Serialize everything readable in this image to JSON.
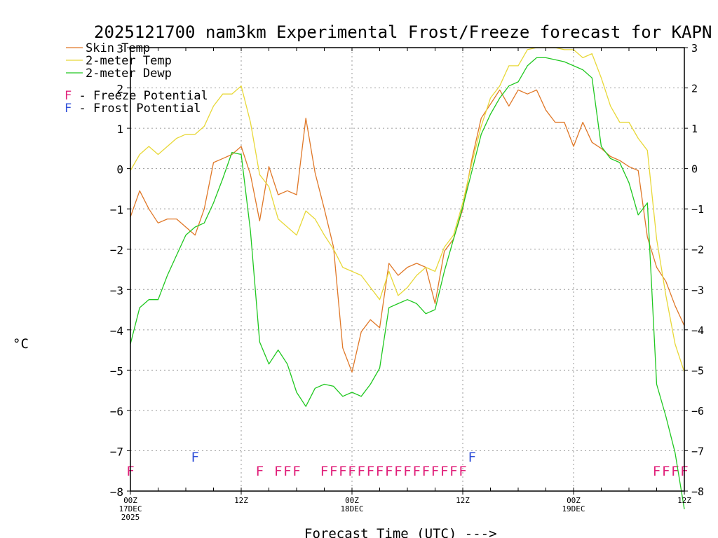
{
  "chart_data": {
    "type": "line",
    "title": "2025121700 nam3km Experimental Frost/Freeze forecast for KAPN",
    "ylabel": "°C",
    "xlabel": "Forecast Time (UTC) --->",
    "ylim": [
      -8,
      3
    ],
    "xlim": [
      0,
      60
    ],
    "yticks": [
      3,
      2,
      1,
      0,
      -1,
      -2,
      -3,
      -4,
      -5,
      -6,
      -7,
      -8
    ],
    "xticks": [
      {
        "x": 0,
        "label": "00Z",
        "sub1": "17DEC",
        "sub2": "2025"
      },
      {
        "x": 12,
        "label": "12Z",
        "sub1": "",
        "sub2": ""
      },
      {
        "x": 24,
        "label": "00Z",
        "sub1": "18DEC",
        "sub2": ""
      },
      {
        "x": 36,
        "label": "12Z",
        "sub1": "",
        "sub2": ""
      },
      {
        "x": 48,
        "label": "00Z",
        "sub1": "19DEC",
        "sub2": ""
      },
      {
        "x": 60,
        "label": "12Z",
        "sub1": "",
        "sub2": ""
      }
    ],
    "series": [
      {
        "name": "Skin Temp",
        "color": "#e07828",
        "x": [
          0,
          1,
          2,
          3,
          4,
          5,
          6,
          7,
          8,
          9,
          10,
          11,
          12,
          13,
          14,
          15,
          16,
          17,
          18,
          19,
          20,
          21,
          22,
          23,
          24,
          25,
          26,
          27,
          28,
          29,
          30,
          31,
          32,
          33,
          34,
          35,
          36,
          37,
          38,
          39,
          40,
          41,
          42,
          43,
          44,
          45,
          46,
          47,
          48,
          49,
          50,
          51,
          52,
          53,
          54,
          55,
          56,
          57,
          58,
          59,
          60
        ],
        "values": [
          -1.2,
          -0.55,
          -1.0,
          -1.35,
          -1.25,
          -1.25,
          -1.45,
          -1.65,
          -1.0,
          0.15,
          0.25,
          0.35,
          0.55,
          -0.15,
          -1.3,
          0.05,
          -0.65,
          -0.55,
          -0.65,
          1.25,
          -0.1,
          -1.0,
          -1.95,
          -4.45,
          -5.05,
          -4.05,
          -3.75,
          -3.95,
          -2.35,
          -2.65,
          -2.45,
          -2.35,
          -2.45,
          -3.35,
          -2.05,
          -1.75,
          -1.0,
          0.25,
          1.25,
          1.6,
          1.95,
          1.55,
          1.95,
          1.85,
          1.95,
          1.45,
          1.15,
          1.15,
          0.55,
          1.15,
          0.65,
          0.5,
          0.3,
          0.2,
          0.05,
          -0.05,
          -1.7,
          -2.45,
          -2.8,
          -3.4,
          -3.9
        ]
      },
      {
        "name": "2-meter Temp",
        "color": "#e8d838",
        "x": [
          0,
          1,
          2,
          3,
          4,
          5,
          6,
          7,
          8,
          9,
          10,
          11,
          12,
          13,
          14,
          15,
          16,
          17,
          18,
          19,
          20,
          21,
          22,
          23,
          24,
          25,
          26,
          27,
          28,
          29,
          30,
          31,
          32,
          33,
          34,
          35,
          36,
          37,
          38,
          39,
          40,
          41,
          42,
          43,
          44,
          45,
          46,
          47,
          48,
          49,
          50,
          51,
          52,
          53,
          54,
          55,
          56,
          57,
          58,
          59,
          60
        ],
        "values": [
          -0.05,
          0.35,
          0.55,
          0.35,
          0.55,
          0.75,
          0.85,
          0.85,
          1.05,
          1.55,
          1.85,
          1.85,
          2.05,
          1.15,
          -0.15,
          -0.45,
          -1.25,
          -1.45,
          -1.65,
          -1.05,
          -1.25,
          -1.65,
          -2.0,
          -2.45,
          -2.55,
          -2.65,
          -2.95,
          -3.25,
          -2.55,
          -3.15,
          -2.95,
          -2.65,
          -2.45,
          -2.55,
          -1.95,
          -1.65,
          -0.85,
          0.15,
          1.05,
          1.75,
          2.05,
          2.55,
          2.55,
          2.95,
          3.0,
          3.0,
          3.0,
          2.95,
          2.95,
          2.75,
          2.85,
          2.25,
          1.55,
          1.15,
          1.15,
          0.75,
          0.45,
          -1.75,
          -3.15,
          -4.35,
          -5.05
        ]
      },
      {
        "name": "2-meter Dewp",
        "color": "#20c820",
        "x": [
          0,
          1,
          2,
          3,
          4,
          5,
          6,
          7,
          8,
          9,
          10,
          11,
          12,
          13,
          14,
          15,
          16,
          17,
          18,
          19,
          20,
          21,
          22,
          23,
          24,
          25,
          26,
          27,
          28,
          29,
          30,
          31,
          32,
          33,
          34,
          35,
          36,
          37,
          38,
          39,
          40,
          41,
          42,
          43,
          44,
          45,
          46,
          47,
          48,
          49,
          50,
          51,
          52,
          53,
          54,
          55,
          56,
          57,
          58,
          59,
          60
        ],
        "values": [
          -4.35,
          -3.45,
          -3.25,
          -3.25,
          -2.65,
          -2.15,
          -1.65,
          -1.45,
          -1.35,
          -0.85,
          -0.25,
          0.4,
          0.35,
          -1.55,
          -4.3,
          -4.85,
          -4.5,
          -4.85,
          -5.55,
          -5.9,
          -5.45,
          -5.35,
          -5.4,
          -5.65,
          -5.55,
          -5.65,
          -5.35,
          -4.95,
          -3.45,
          -3.35,
          -3.25,
          -3.35,
          -3.6,
          -3.5,
          -2.55,
          -1.75,
          -0.95,
          -0.05,
          0.85,
          1.35,
          1.75,
          2.05,
          2.15,
          2.55,
          2.75,
          2.75,
          2.7,
          2.65,
          2.55,
          2.45,
          2.25,
          0.55,
          0.25,
          0.15,
          -0.35,
          -1.15,
          -0.85,
          -5.35,
          -6.15,
          -7.05,
          -8.45
        ]
      }
    ],
    "legend": [
      {
        "label": "Skin Temp",
        "color": "#e07828"
      },
      {
        "label": "2-meter Temp",
        "color": "#e8d838"
      },
      {
        "label": "2-meter Dewp",
        "color": "#20c820"
      }
    ],
    "flag_legend": [
      {
        "letter": "F",
        "label": " - Freeze Potential",
        "color": "#e0207a"
      },
      {
        "letter": "F",
        "label": " - Frost Potential",
        "color": "#3050d8"
      }
    ],
    "freeze_flags": {
      "color": "#e0207a",
      "y": -7.5,
      "x": [
        0,
        14,
        16,
        17,
        18,
        21,
        22,
        23,
        24,
        25,
        26,
        27,
        28,
        29,
        30,
        31,
        32,
        33,
        34,
        35,
        36,
        57,
        58,
        59,
        60
      ]
    },
    "frost_flags": {
      "color": "#3050d8",
      "y": -7.15,
      "x": [
        7,
        37
      ]
    },
    "flag_letter": "F"
  }
}
